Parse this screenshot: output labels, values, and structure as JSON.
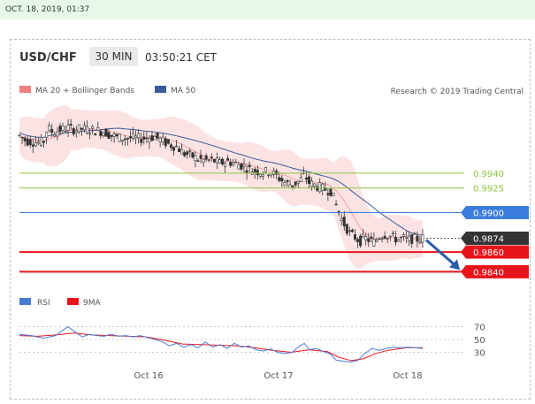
{
  "timestamp": "OCT. 18, 2019, 01:37",
  "header": {
    "symbol": "USD/CHF",
    "timeframe": "30 MIN",
    "clock": "03:50:21 CET"
  },
  "colors": {
    "green_level": "#8cc63f",
    "blue_level": "#3b7ddd",
    "red_level": "#e8141b",
    "dark_label": "#333333",
    "bollinger": "#fbdada",
    "ma20": "#f08080",
    "ma50": "#3a5a9a",
    "up_candle": "#8b8b8b",
    "down_candle": "#333333",
    "arrow": "#2b5ca8",
    "rsi": "#4a7bd3",
    "rsi_ma": "#e8141b"
  },
  "chart_data": [
    {
      "type": "candlestick",
      "legend": [
        "MA 20 + Bollinger Bands",
        "MA 50"
      ],
      "credit": "Research © 2019 Trading Central",
      "levels": [
        {
          "value": 0.994,
          "label": "0.9940",
          "kind": "resistance"
        },
        {
          "value": 0.9925,
          "label": "0.9925",
          "kind": "resistance"
        },
        {
          "value": 0.99,
          "label": "0.9900",
          "kind": "pivot"
        },
        {
          "value": 0.9874,
          "label": "0.9874",
          "kind": "last"
        },
        {
          "value": 0.986,
          "label": "0.9860",
          "kind": "target"
        },
        {
          "value": 0.984,
          "label": "0.9840",
          "kind": "target"
        }
      ],
      "ylim": [
        0.9826,
        1.0008
      ],
      "x_labels": [
        "Oct 16",
        "Oct 17",
        "Oct 18"
      ],
      "price_path": [
        [
          0,
          0.9978
        ],
        [
          5,
          0.9973
        ],
        [
          10,
          0.9972
        ],
        [
          15,
          0.9971
        ],
        [
          20,
          0.9972
        ],
        [
          23,
          0.9986
        ],
        [
          28,
          0.9981
        ],
        [
          34,
          0.9984
        ],
        [
          40,
          0.9986
        ],
        [
          46,
          0.9984
        ],
        [
          52,
          0.9985
        ],
        [
          58,
          0.9984
        ],
        [
          64,
          0.9983
        ],
        [
          70,
          0.9982
        ],
        [
          76,
          0.9978
        ],
        [
          82,
          0.9976
        ],
        [
          88,
          0.9975
        ],
        [
          94,
          0.9976
        ],
        [
          100,
          0.9975
        ],
        [
          106,
          0.9976
        ],
        [
          112,
          0.9977
        ],
        [
          118,
          0.9973
        ],
        [
          124,
          0.9969
        ],
        [
          130,
          0.9967
        ],
        [
          136,
          0.996
        ],
        [
          142,
          0.9958
        ],
        [
          148,
          0.9954
        ],
        [
          154,
          0.9953
        ],
        [
          160,
          0.9953
        ],
        [
          166,
          0.995
        ],
        [
          172,
          0.9952
        ],
        [
          178,
          0.995
        ],
        [
          184,
          0.9948
        ],
        [
          190,
          0.9944
        ],
        [
          196,
          0.9942
        ],
        [
          202,
          0.9941
        ],
        [
          208,
          0.9942
        ],
        [
          214,
          0.9936
        ],
        [
          220,
          0.993
        ],
        [
          226,
          0.9928
        ],
        [
          232,
          0.9932
        ],
        [
          236,
          0.9938
        ],
        [
          240,
          0.993
        ],
        [
          246,
          0.9927
        ],
        [
          252,
          0.9924
        ],
        [
          258,
          0.9922
        ],
        [
          262,
          0.9908
        ],
        [
          266,
          0.9895
        ],
        [
          270,
          0.9886
        ],
        [
          274,
          0.9878
        ],
        [
          278,
          0.9875
        ],
        [
          282,
          0.9871
        ],
        [
          286,
          0.9874
        ],
        [
          290,
          0.9872
        ],
        [
          294,
          0.987
        ],
        [
          298,
          0.9876
        ],
        [
          302,
          0.9878
        ],
        [
          306,
          0.9877
        ],
        [
          310,
          0.9874
        ],
        [
          314,
          0.9873
        ],
        [
          318,
          0.9874
        ],
        [
          322,
          0.9872
        ],
        [
          326,
          0.9874
        ],
        [
          330,
          0.9873
        ],
        [
          334,
          0.9874
        ]
      ]
    },
    {
      "type": "line",
      "legend": [
        "RSI",
        "9MA"
      ],
      "y_ticks": [
        70,
        50,
        30
      ],
      "ylim": [
        10,
        90
      ],
      "rsi": [
        [
          0,
          58
        ],
        [
          10,
          56
        ],
        [
          20,
          52
        ],
        [
          30,
          56
        ],
        [
          40,
          70
        ],
        [
          46,
          62
        ],
        [
          52,
          54
        ],
        [
          58,
          58
        ],
        [
          64,
          56
        ],
        [
          70,
          55
        ],
        [
          76,
          58
        ],
        [
          82,
          55
        ],
        [
          88,
          56
        ],
        [
          94,
          54
        ],
        [
          100,
          56
        ],
        [
          106,
          53
        ],
        [
          112,
          50
        ],
        [
          118,
          47
        ],
        [
          124,
          40
        ],
        [
          130,
          44
        ],
        [
          136,
          38
        ],
        [
          142,
          42
        ],
        [
          148,
          37
        ],
        [
          154,
          46
        ],
        [
          160,
          38
        ],
        [
          166,
          42
        ],
        [
          172,
          36
        ],
        [
          178,
          44
        ],
        [
          184,
          38
        ],
        [
          190,
          40
        ],
        [
          196,
          34
        ],
        [
          202,
          32
        ],
        [
          208,
          35
        ],
        [
          214,
          30
        ],
        [
          220,
          28
        ],
        [
          226,
          30
        ],
        [
          232,
          40
        ],
        [
          236,
          44
        ],
        [
          240,
          34
        ],
        [
          246,
          36
        ],
        [
          252,
          31
        ],
        [
          258,
          27
        ],
        [
          262,
          18
        ],
        [
          268,
          16
        ],
        [
          274,
          15
        ],
        [
          280,
          17
        ],
        [
          286,
          28
        ],
        [
          292,
          36
        ],
        [
          298,
          33
        ],
        [
          304,
          36
        ],
        [
          310,
          38
        ],
        [
          316,
          37
        ],
        [
          322,
          38
        ],
        [
          328,
          37
        ],
        [
          334,
          36
        ]
      ],
      "rsi_ma": [
        [
          0,
          56
        ],
        [
          15,
          55
        ],
        [
          30,
          57
        ],
        [
          45,
          60
        ],
        [
          60,
          57
        ],
        [
          75,
          56
        ],
        [
          90,
          55
        ],
        [
          105,
          54
        ],
        [
          120,
          49
        ],
        [
          135,
          43
        ],
        [
          150,
          42
        ],
        [
          165,
          41
        ],
        [
          180,
          40
        ],
        [
          195,
          37
        ],
        [
          210,
          33
        ],
        [
          225,
          30
        ],
        [
          240,
          34
        ],
        [
          255,
          31
        ],
        [
          265,
          22
        ],
        [
          275,
          17
        ],
        [
          285,
          20
        ],
        [
          295,
          28
        ],
        [
          305,
          33
        ],
        [
          320,
          37
        ],
        [
          334,
          37
        ]
      ]
    }
  ]
}
